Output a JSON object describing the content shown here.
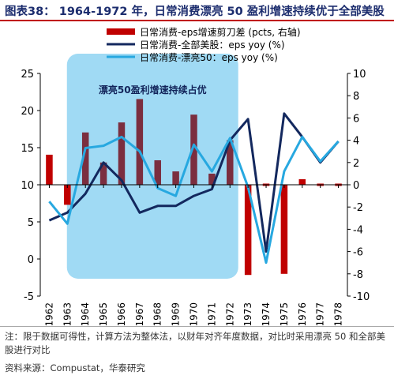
{
  "figure": {
    "title": "图表38： 1964-1972 年，日常消费漂亮 50 盈利增速持续优于全部美股",
    "note": "注：限于数据可得性，计算方法为整体法，以财年对齐年度数据，对比时采用漂亮 50 和全部美股进行对比",
    "source": "资料来源：Compustat，华泰研究"
  },
  "chart_data": {
    "type": "bar+line",
    "categories": [
      "1962",
      "1963",
      "1964",
      "1965",
      "1966",
      "1967",
      "1968",
      "1969",
      "1970",
      "1971",
      "1972",
      "1973",
      "1974",
      "1975",
      "1976",
      "1977",
      "1978"
    ],
    "annotation": {
      "text": "漂亮50盈利增速持续占优",
      "from": "1964",
      "to": "1972"
    },
    "left_axis": {
      "ylim": [
        -5,
        25
      ],
      "ticks": [
        -5,
        0,
        5,
        10,
        15,
        20,
        25
      ],
      "baseline": 10
    },
    "right_axis": {
      "ylim": [
        -10,
        10
      ],
      "ticks": [
        -10,
        -8,
        -6,
        -4,
        -2,
        0,
        2,
        4,
        6,
        8,
        10
      ]
    },
    "grid": false,
    "legend": "top",
    "series": [
      {
        "name": "日常消费-eps增速剪刀差 (pcts, 右轴)",
        "kind": "bar",
        "axis": "right",
        "color": "#c00000",
        "values": [
          2.7,
          -1.8,
          4.7,
          2.0,
          5.6,
          7.7,
          2.2,
          1.2,
          6.3,
          1.0,
          4.0,
          -8.1,
          -0.1,
          -8.0,
          0.5,
          0.1,
          0.1
        ]
      },
      {
        "name": "日常消费-全部美股：eps yoy (%)",
        "kind": "line",
        "axis": "right",
        "color": "#13285e",
        "values": [
          -3.2,
          -2.5,
          -0.8,
          2.0,
          0.4,
          -2.5,
          -1.9,
          -1.9,
          -1.0,
          -0.4,
          4.0,
          5.9,
          -6.0,
          6.4,
          4.3,
          2.0,
          3.9
        ]
      },
      {
        "name": "日常消费-漂亮50：eps yoy (%)",
        "kind": "line",
        "axis": "right",
        "color": "#27a8e0",
        "values": [
          -1.5,
          -3.5,
          3.3,
          3.5,
          4.3,
          3.0,
          -0.3,
          -1.0,
          3.6,
          1.2,
          4.2,
          -0.2,
          -7.0,
          1.2,
          4.3,
          2.1,
          3.9
        ]
      }
    ]
  },
  "colors": {
    "bar": "#c00000",
    "line_all": "#13285e",
    "line_p50": "#27a8e0",
    "highlight": "#9bd8f3",
    "title": "#1c2d6e"
  }
}
